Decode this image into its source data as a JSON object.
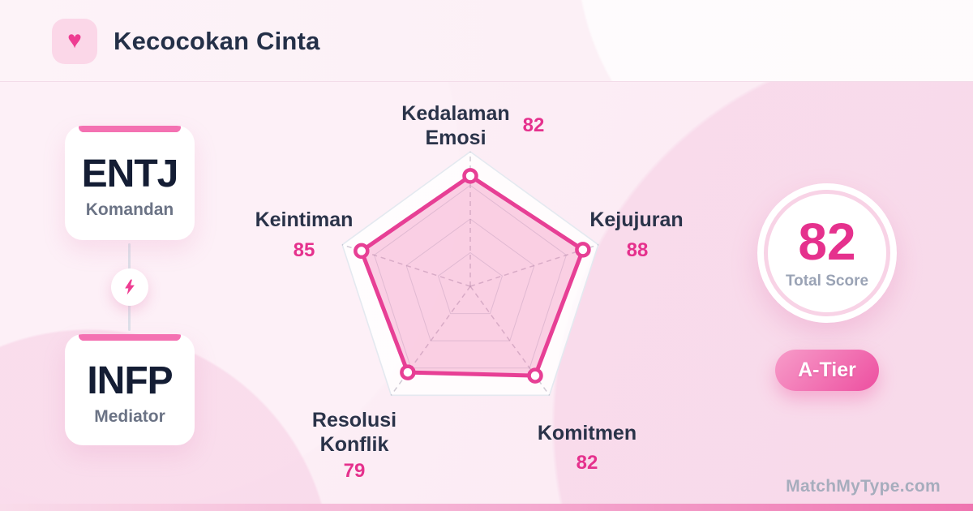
{
  "header": {
    "title": "Kecocokan Cinta",
    "icon": "heart"
  },
  "pair": {
    "top": {
      "code": "ENTJ",
      "nickname": "Komandan"
    },
    "bottom": {
      "code": "INFP",
      "nickname": "Mediator"
    },
    "connector_icon": "lightning-bolt"
  },
  "chart_data": {
    "type": "radar",
    "categories": [
      "Kedalaman Emosi",
      "Kejujuran",
      "Komitmen",
      "Resolusi Konflik",
      "Keintiman"
    ],
    "values": [
      82,
      88,
      82,
      79,
      85
    ],
    "scale": {
      "min": 0,
      "max": 100
    },
    "grid_levels": [
      0.25,
      0.5,
      0.75,
      1.0
    ],
    "start_angle_deg": -90,
    "legend": "none",
    "grid": "dashed-spokes-with-pentagon-rings"
  },
  "score": {
    "value": "82",
    "label": "Total Score",
    "tier": "A-Tier"
  },
  "watermark": "MatchMyType.com",
  "colors": {
    "accent": "#e5318d",
    "polygon_stroke": "#e73f95",
    "polygon_fill": "rgba(238,103,170,0.30)",
    "outer_ring_fill": "rgba(255,255,255,0.82)",
    "outer_ring_stroke": "#e4e9f0",
    "grid_stroke": "rgba(151,162,181,0.35)",
    "spoke_stroke": "rgba(160,150,170,0.5)",
    "card_topbar": "#f471b2",
    "tier_gradient_from": "#f79cc9",
    "tier_gradient_to": "#ed4fa0"
  }
}
